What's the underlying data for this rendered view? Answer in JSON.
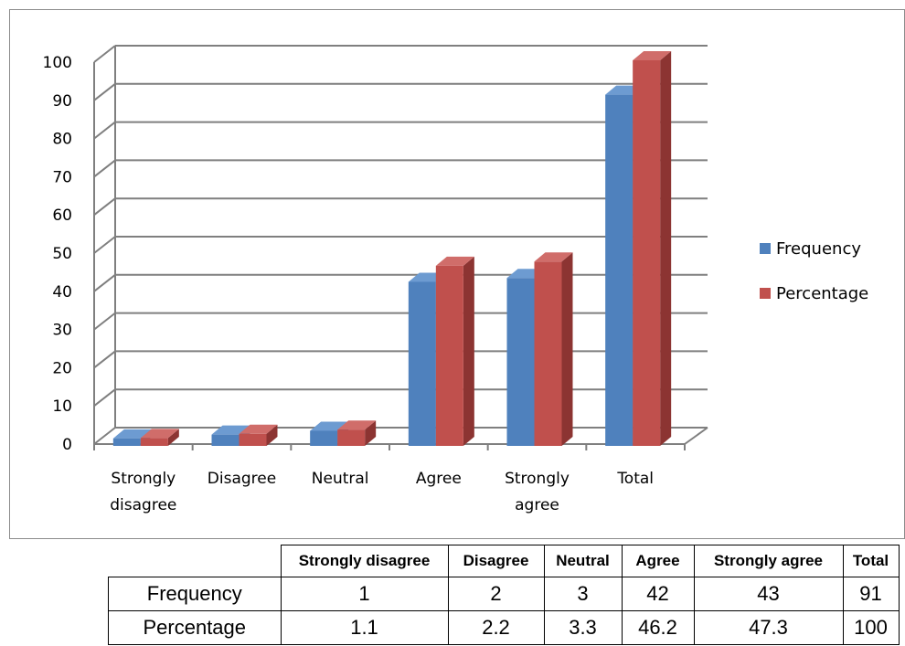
{
  "chart_data": {
    "type": "bar",
    "categories": [
      [
        "Strongly",
        "disagree"
      ],
      [
        "Disagree"
      ],
      [
        "Neutral"
      ],
      [
        "Agree"
      ],
      [
        "Strongly",
        "agree"
      ],
      [
        "Total"
      ]
    ],
    "series": [
      {
        "name": "Frequency",
        "values": [
          1,
          2,
          3,
          42,
          43,
          91
        ],
        "color": "#4f81bd",
        "side": "#3b6596",
        "top": "#6d9bd1"
      },
      {
        "name": "Percentage",
        "values": [
          1.1,
          2.2,
          3.3,
          46.2,
          47.3,
          100
        ],
        "color": "#c0504d",
        "side": "#8c3432",
        "top": "#d06d6a"
      }
    ],
    "ylim": [
      0,
      100
    ],
    "yticks": [
      "0",
      "10",
      "20",
      "30",
      "40",
      "50",
      "60",
      "70",
      "80",
      "90",
      "100"
    ],
    "grid": true,
    "legend_position": "right",
    "three_d": true
  },
  "table": {
    "headers": [
      "Strongly disagree",
      "Disagree",
      "Neutral",
      "Agree",
      "Strongly agree",
      "Total"
    ],
    "rows": [
      {
        "label": "Frequency",
        "values": [
          "1",
          "2",
          "3",
          "42",
          "43",
          "91"
        ]
      },
      {
        "label": "Percentage",
        "values": [
          "1.1",
          "2.2",
          "3.3",
          "46.2",
          "47.3",
          "100"
        ]
      }
    ]
  }
}
